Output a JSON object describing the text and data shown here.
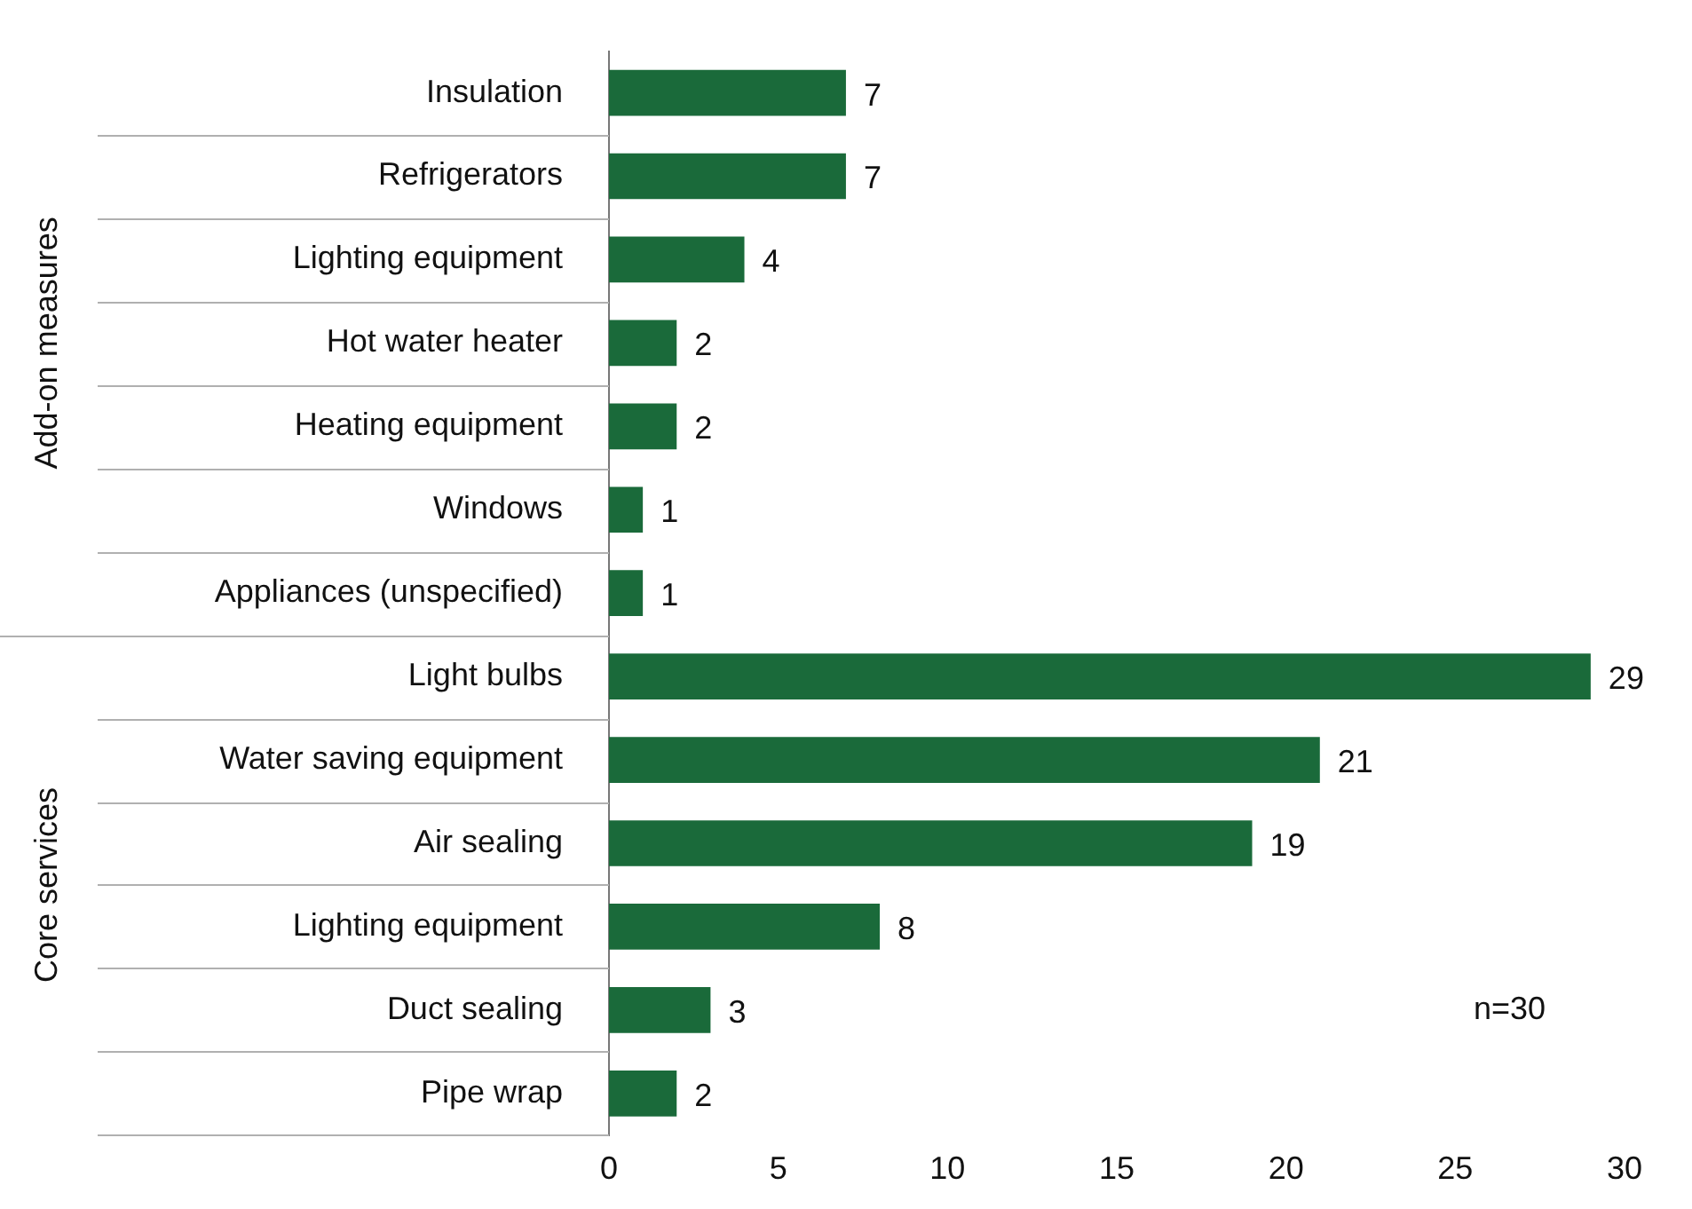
{
  "chart_data": {
    "type": "bar",
    "orientation": "horizontal",
    "categories": [
      "Insulation",
      "Refrigerators",
      "Lighting equipment",
      "Hot water heater",
      "Heating equipment",
      "Windows",
      "Appliances (unspecified)",
      "Light bulbs",
      "Water saving equipment",
      "Air sealing",
      "Lighting equipment",
      "Duct sealing",
      "Pipe wrap"
    ],
    "values": [
      7,
      7,
      4,
      2,
      2,
      1,
      1,
      29,
      21,
      19,
      8,
      3,
      2
    ],
    "color": "#1a6a3a",
    "xlim": [
      0,
      30
    ],
    "xticks": [
      0,
      5,
      10,
      15,
      20,
      25,
      30
    ],
    "data_labels": true,
    "grid": false,
    "legend": false,
    "annotations": [
      "Add-on measures",
      "Core services",
      "n=30"
    ]
  }
}
